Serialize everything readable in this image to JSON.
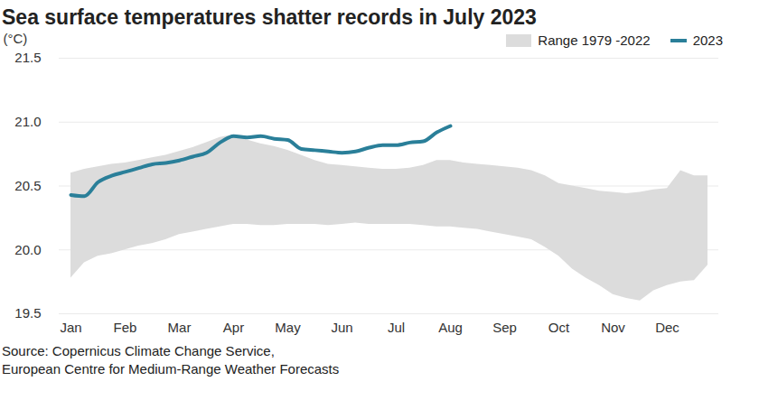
{
  "chart_data": {
    "type": "line",
    "title": "Sea surface temperatures shatter records in July 2023",
    "ylabel": "(°C)",
    "source": [
      "Source: Copernicus Climate Change Service,",
      "European Centre for Medium-Range Weather Forecasts"
    ],
    "categories": [
      "Jan",
      null,
      null,
      null,
      "Feb",
      null,
      null,
      null,
      "Mar",
      null,
      null,
      null,
      "Apr",
      null,
      null,
      null,
      "May",
      null,
      null,
      null,
      "Jun",
      null,
      null,
      null,
      "Jul",
      null,
      null,
      null,
      "Aug",
      null,
      null,
      null,
      "Sep",
      null,
      null,
      null,
      "Oct",
      null,
      null,
      null,
      "Nov",
      null,
      null,
      null,
      "Dec",
      null,
      null,
      null
    ],
    "series": [
      {
        "name": "Range 1979 -2022",
        "type": "area",
        "color": "#dcdcdc",
        "low": [
          19.78,
          19.9,
          19.95,
          19.97,
          20.0,
          20.03,
          20.05,
          20.08,
          20.12,
          20.14,
          20.16,
          20.18,
          20.2,
          20.2,
          20.19,
          20.19,
          20.2,
          20.2,
          20.2,
          20.19,
          20.2,
          20.21,
          20.2,
          20.2,
          20.2,
          20.2,
          20.19,
          20.18,
          20.18,
          20.17,
          20.16,
          20.14,
          20.12,
          20.1,
          20.08,
          20.02,
          19.95,
          19.85,
          19.78,
          19.72,
          19.65,
          19.62,
          19.6,
          19.68,
          19.72,
          19.75,
          19.76,
          19.88
        ],
        "high": [
          20.6,
          20.63,
          20.65,
          20.67,
          20.68,
          20.7,
          20.72,
          20.74,
          20.77,
          20.8,
          20.84,
          20.88,
          20.9,
          20.86,
          20.83,
          20.81,
          20.78,
          20.74,
          20.7,
          20.67,
          20.66,
          20.65,
          20.64,
          20.63,
          20.63,
          20.64,
          20.66,
          20.7,
          20.7,
          20.68,
          20.67,
          20.66,
          20.65,
          20.64,
          20.62,
          20.58,
          20.52,
          20.5,
          20.48,
          20.46,
          20.45,
          20.44,
          20.45,
          20.47,
          20.48,
          20.62,
          20.58,
          20.58
        ]
      },
      {
        "name": "2023",
        "type": "line",
        "color": "#2a7f99",
        "values": [
          20.43,
          20.42,
          20.53,
          20.58,
          20.61,
          20.64,
          20.67,
          20.68,
          20.7,
          20.73,
          20.76,
          20.84,
          20.89,
          20.88,
          20.89,
          20.87,
          20.86,
          20.79,
          20.78,
          20.77,
          20.76,
          20.77,
          20.8,
          20.82,
          20.82,
          20.84,
          20.85,
          20.92,
          20.97,
          null,
          null,
          null,
          null,
          null,
          null,
          null,
          null,
          null,
          null,
          null,
          null,
          null,
          null,
          null,
          null,
          null,
          null,
          null
        ]
      }
    ],
    "ylim": [
      19.5,
      21.5
    ],
    "yticks": [
      19.5,
      {
        "value": 20,
        "label": "20.0"
      },
      20.5,
      {
        "value": 21,
        "label": "21.0"
      },
      21.5
    ],
    "grid": true,
    "legend": "top-right"
  }
}
